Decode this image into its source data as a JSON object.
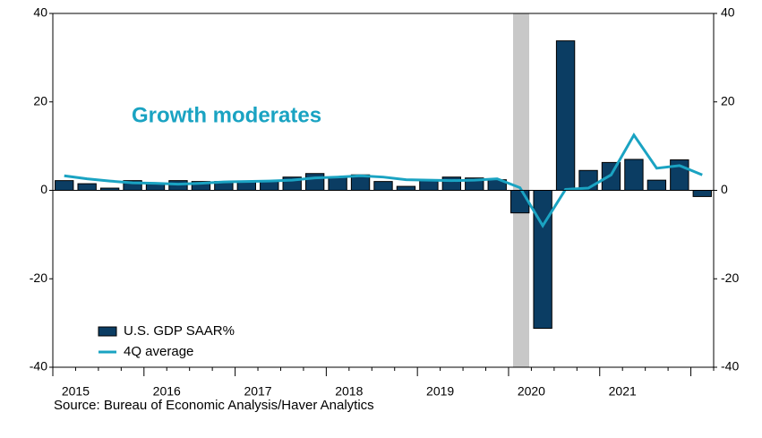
{
  "chart_data": {
    "type": "bar_line",
    "annotation": "Growth moderates",
    "source": "Source:   Bureau of Economic Analysis/Haver Analytics",
    "categories": [
      "2015",
      null,
      null,
      null,
      "2016",
      null,
      null,
      null,
      "2017",
      null,
      null,
      null,
      "2018",
      null,
      null,
      null,
      "2019",
      null,
      null,
      null,
      "2020",
      null,
      null,
      null,
      "2021",
      null,
      null,
      null,
      null
    ],
    "series": [
      {
        "name": "U.S. GDP SAAR%",
        "type": "bar",
        "color": "#0b3d63",
        "values": [
          2.2,
          1.5,
          0.5,
          2.2,
          1.5,
          2.2,
          2.0,
          2.0,
          2.0,
          2.2,
          3.0,
          3.8,
          3.0,
          3.5,
          2.0,
          0.9,
          2.4,
          3.0,
          2.8,
          2.4,
          -5.1,
          -31.2,
          33.8,
          4.5,
          6.3,
          7.0,
          2.3,
          6.9,
          -1.4
        ]
      },
      {
        "name": "4Q average",
        "type": "line",
        "color": "#1aa3c2",
        "values": [
          3.3,
          2.6,
          2.1,
          1.7,
          1.6,
          1.4,
          1.6,
          1.9,
          2.0,
          2.1,
          2.3,
          2.8,
          3.0,
          3.3,
          3.0,
          2.4,
          2.3,
          2.2,
          2.3,
          2.6,
          0.6,
          -8.0,
          0.2,
          0.5,
          3.5,
          12.5,
          5.0,
          5.6,
          3.5
        ]
      }
    ],
    "ylim": [
      -40,
      40
    ],
    "yticks": [
      -40,
      -20,
      0,
      20,
      40
    ],
    "y2lim": [
      -40,
      40
    ],
    "y2ticks": [
      -40,
      -20,
      0,
      20,
      40
    ]
  }
}
